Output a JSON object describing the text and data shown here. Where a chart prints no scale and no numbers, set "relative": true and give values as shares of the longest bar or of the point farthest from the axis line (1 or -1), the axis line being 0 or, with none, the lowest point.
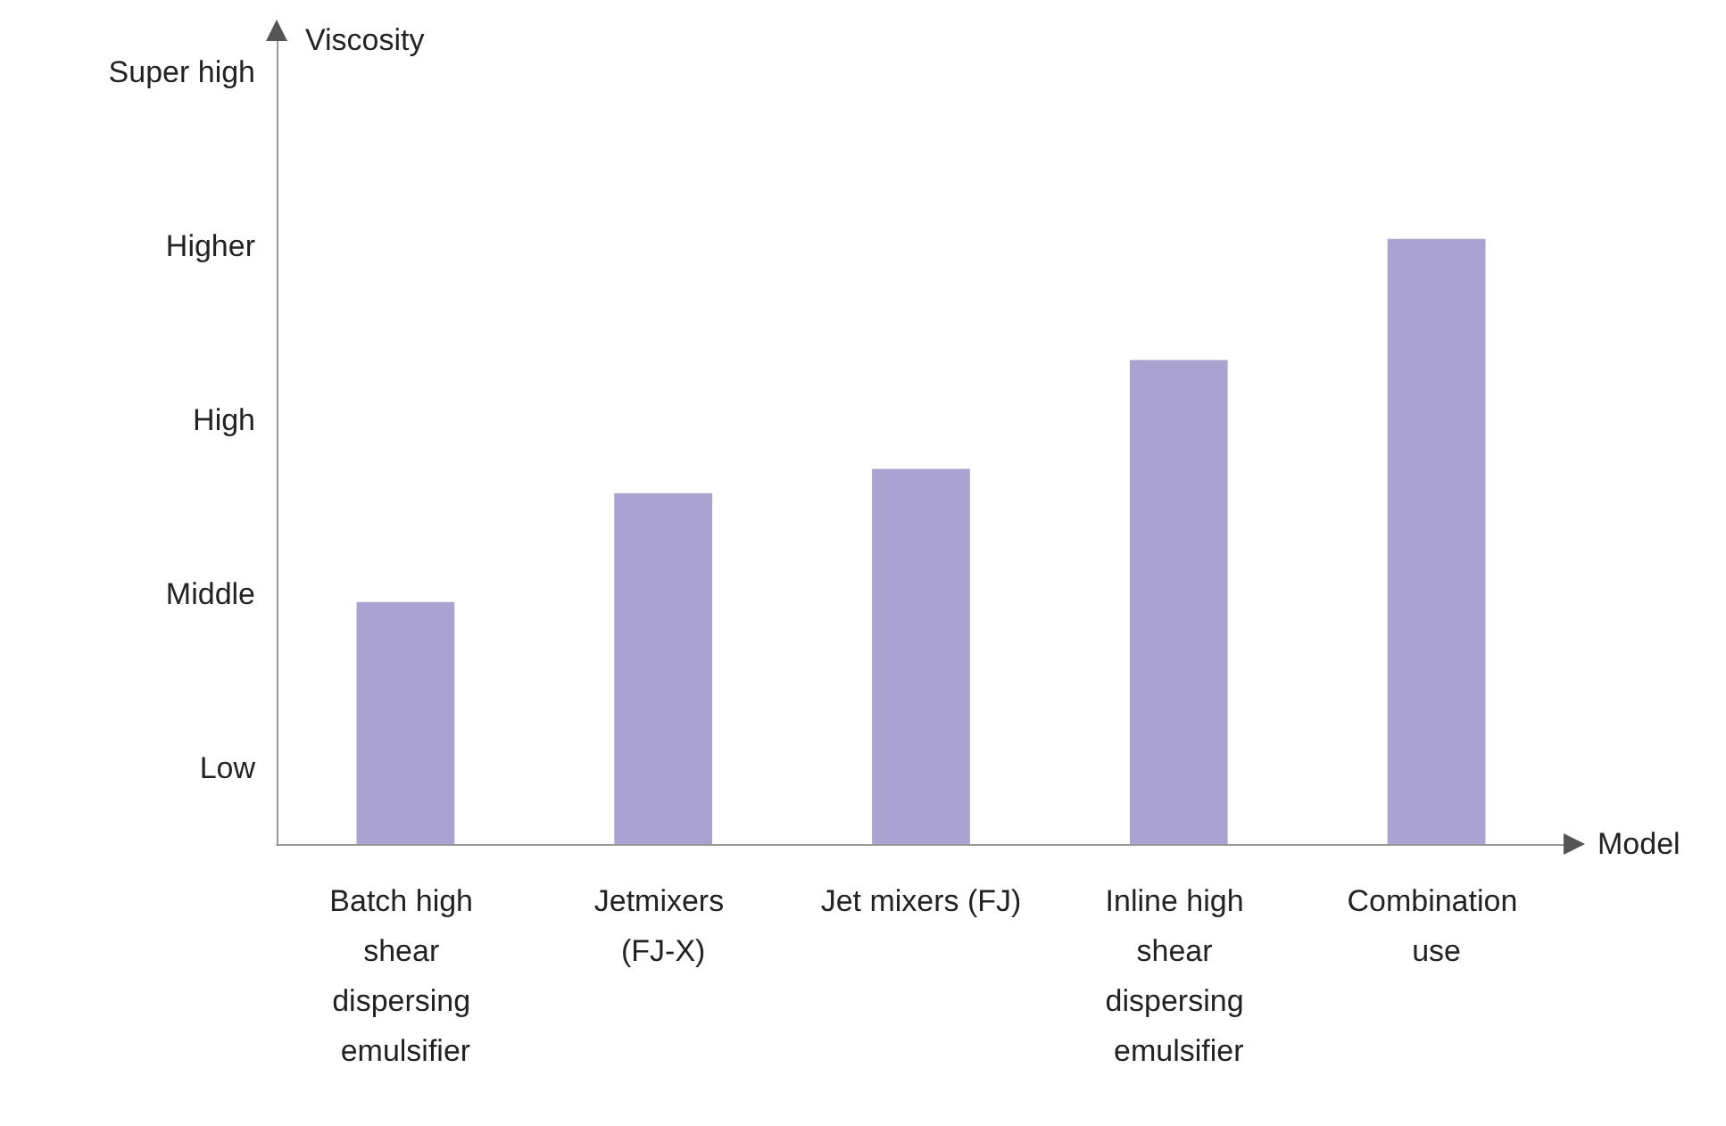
{
  "chart_data": {
    "type": "bar",
    "xlabel": "Model",
    "relative": true,
    "categories": [
      "Batch high shear dispersing emulsifier",
      "Jetmixers (FJ-X)",
      "Jet mixers (FJ)",
      "Inline high shear dispersing emulsifier",
      "Combination use"
    ],
    "values": [
      0.4,
      0.58,
      0.62,
      0.8,
      1
    ],
    "color": "#aaa2d0",
    "annotations": [
      "Viscosity",
      "Low",
      "Middle",
      "High",
      "Higher",
      "Super high"
    ],
    "grid": false
  }
}
